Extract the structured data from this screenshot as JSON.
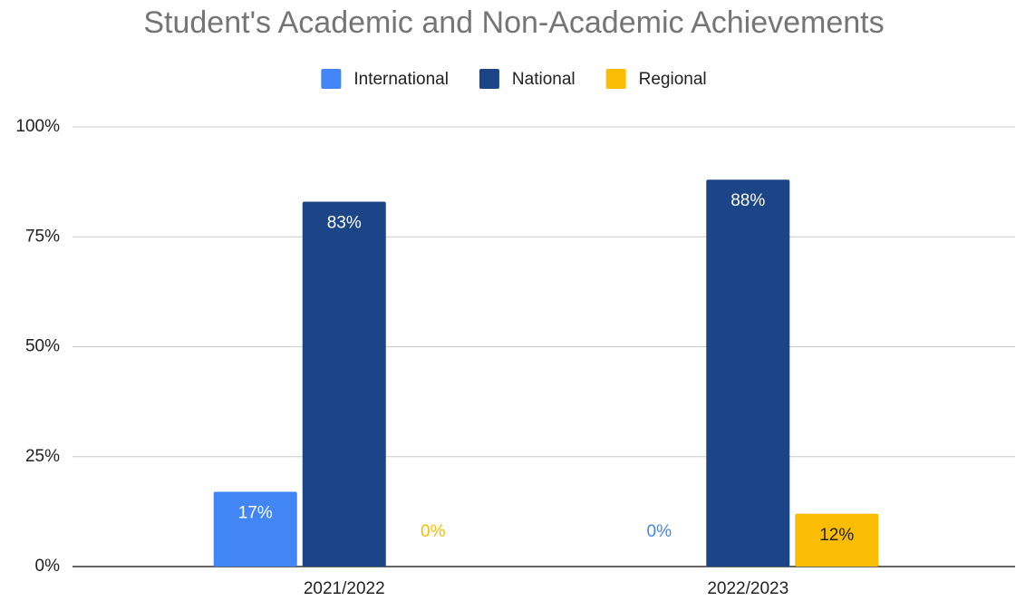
{
  "chart_data": {
    "type": "bar",
    "title": "Student's Academic and Non-Academic Achievements",
    "categories": [
      "2021/2022",
      "2022/2023"
    ],
    "series": [
      {
        "name": "International",
        "color": "#4285f4",
        "values": [
          17,
          0
        ],
        "value_labels": [
          "17%",
          "0%"
        ]
      },
      {
        "name": "National",
        "color": "#1c4587",
        "values": [
          83,
          88
        ],
        "value_labels": [
          "83%",
          "88%"
        ]
      },
      {
        "name": "Regional",
        "color": "#fbbc04",
        "values": [
          0,
          12
        ],
        "value_labels": [
          "0%",
          "12%"
        ]
      }
    ],
    "ylim": [
      0,
      100
    ],
    "yticks": [
      {
        "value": 0,
        "label": "0%"
      },
      {
        "value": 25,
        "label": "25%"
      },
      {
        "value": 50,
        "label": "50%"
      },
      {
        "value": 75,
        "label": "75%"
      },
      {
        "value": 100,
        "label": "100%"
      }
    ],
    "grid": true,
    "legend": "top"
  }
}
